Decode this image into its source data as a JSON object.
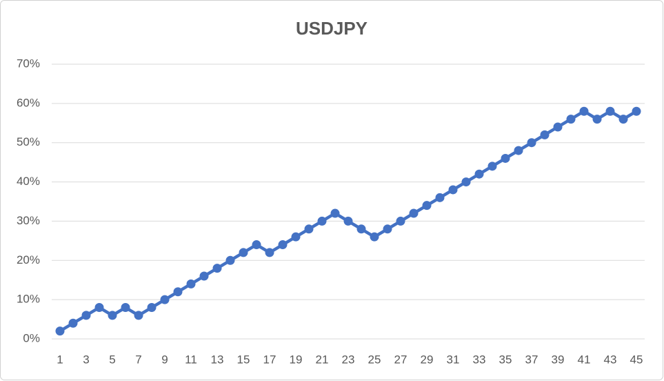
{
  "chart_data": {
    "type": "line",
    "title": "USDJPY",
    "categories": [
      "1",
      null,
      "3",
      null,
      "5",
      null,
      "7",
      null,
      "9",
      null,
      "11",
      null,
      "13",
      null,
      "15",
      null,
      "17",
      null,
      "19",
      null,
      "21",
      null,
      "23",
      null,
      "25",
      null,
      "27",
      null,
      "29",
      null,
      "31",
      null,
      "33",
      null,
      "35",
      null,
      "37",
      null,
      "39",
      null,
      "41",
      null,
      "43",
      null,
      "45"
    ],
    "values": [
      2,
      4,
      6,
      8,
      6,
      8,
      6,
      8,
      10,
      12,
      14,
      16,
      18,
      20,
      22,
      24,
      22,
      24,
      26,
      28,
      30,
      32,
      30,
      28,
      26,
      28,
      30,
      32,
      34,
      36,
      38,
      40,
      42,
      44,
      46,
      48,
      50,
      52,
      54,
      56,
      58,
      56,
      58,
      56,
      58
    ],
    "color": "#4472c4",
    "ylim": [
      0,
      70
    ],
    "yticks": [
      {
        "value": 0,
        "label": "0%"
      },
      {
        "value": 10,
        "label": "10%"
      },
      {
        "value": 20,
        "label": "20%"
      },
      {
        "value": 30,
        "label": "30%"
      },
      {
        "value": 40,
        "label": "40%"
      },
      {
        "value": 50,
        "label": "50%"
      },
      {
        "value": 60,
        "label": "60%"
      },
      {
        "value": 70,
        "label": "70%"
      }
    ],
    "grid": true
  }
}
